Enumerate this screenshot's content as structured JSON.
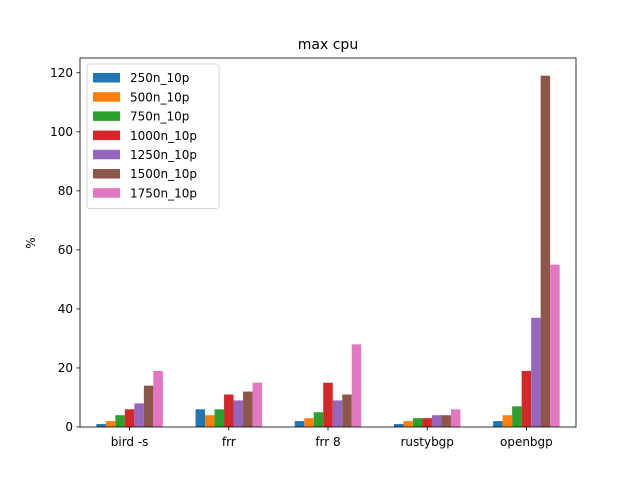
{
  "chart_data": {
    "type": "bar",
    "title": "max cpu",
    "xlabel": "",
    "ylabel": "%",
    "ylim": [
      0,
      125
    ],
    "yticks": [
      0,
      20,
      40,
      60,
      80,
      100,
      120
    ],
    "grid": false,
    "legend_position": "top-left",
    "categories": [
      "bird -s",
      "frr",
      "frr 8",
      "rustybgp",
      "openbgp"
    ],
    "series": [
      {
        "name": "250n_10p",
        "color": "#1f77b4",
        "values": [
          1,
          6,
          2,
          1,
          2
        ]
      },
      {
        "name": "500n_10p",
        "color": "#ff7f0e",
        "values": [
          2,
          4,
          3,
          2,
          4
        ]
      },
      {
        "name": "750n_10p",
        "color": "#2ca02c",
        "values": [
          4,
          6,
          5,
          3,
          7
        ]
      },
      {
        "name": "1000n_10p",
        "color": "#d62728",
        "values": [
          6,
          11,
          15,
          3,
          19
        ]
      },
      {
        "name": "1250n_10p",
        "color": "#9467bd",
        "values": [
          8,
          9,
          9,
          4,
          37
        ]
      },
      {
        "name": "1500n_10p",
        "color": "#8c564b",
        "values": [
          14,
          12,
          11,
          4,
          119
        ]
      },
      {
        "name": "1750n_10p",
        "color": "#e377c2",
        "values": [
          19,
          15,
          28,
          6,
          55
        ]
      }
    ]
  }
}
